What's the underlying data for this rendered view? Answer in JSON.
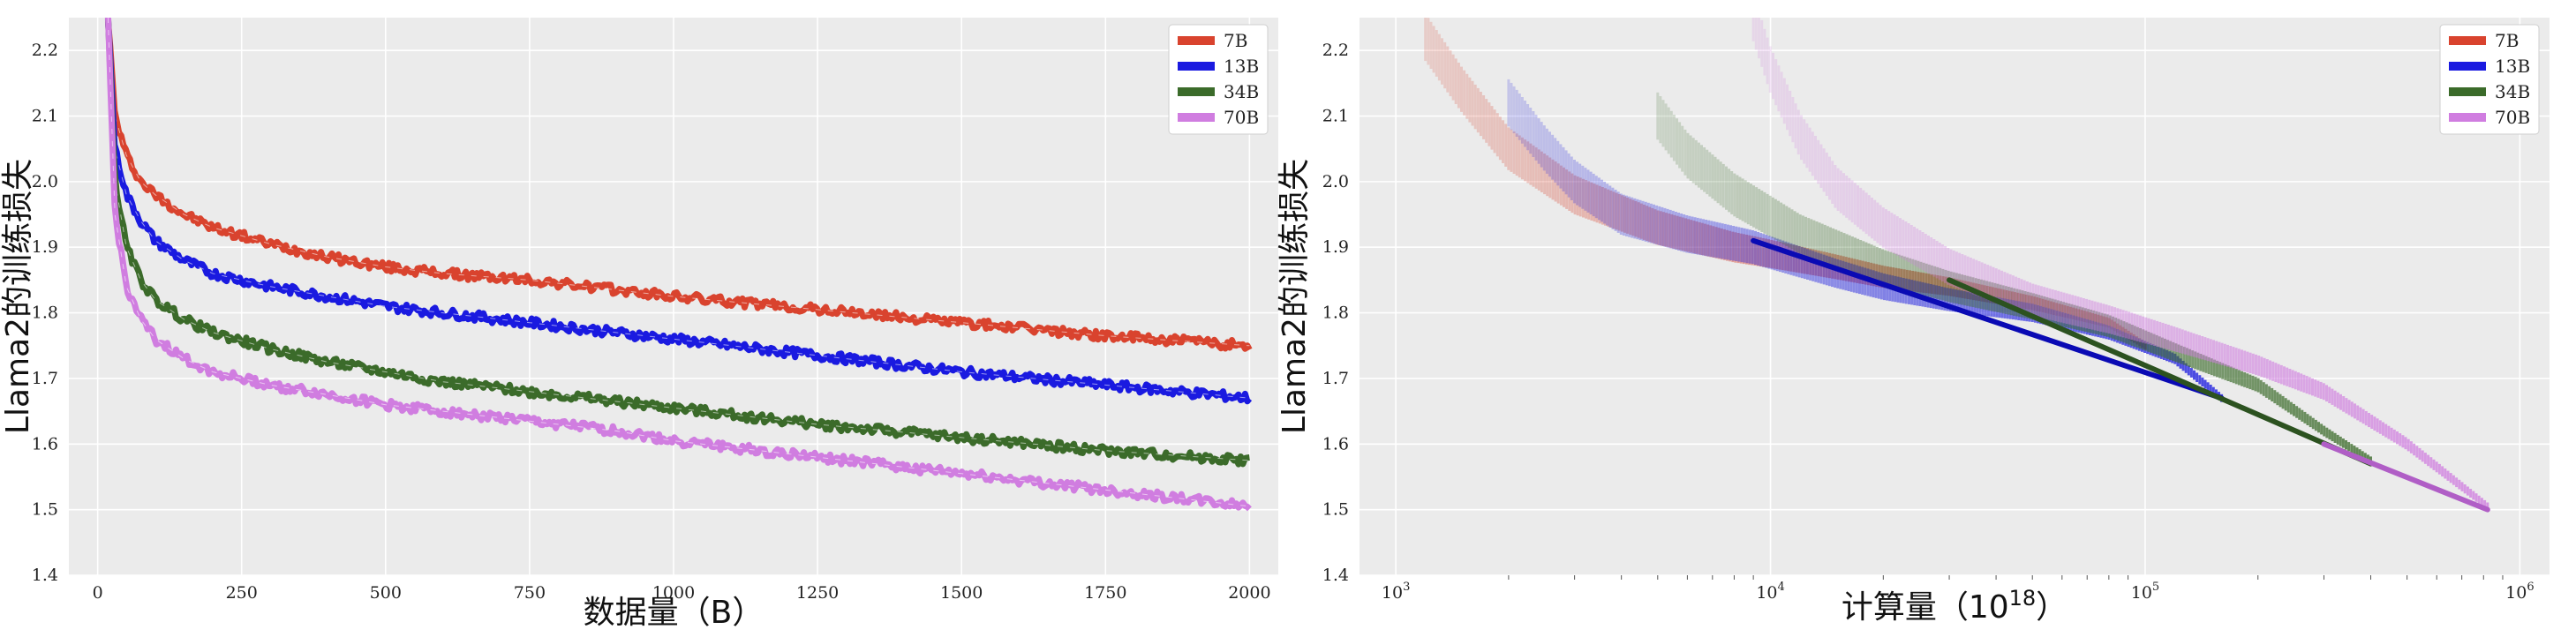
{
  "chart_data": [
    {
      "type": "line",
      "xlabel": "数据量（B）",
      "ylabel": "Llama2的训练损失",
      "xlim": [
        -50,
        2050
      ],
      "ylim": [
        1.4,
        2.25
      ],
      "x_scale": "linear",
      "x_ticks": [
        0,
        250,
        500,
        750,
        1000,
        1250,
        1500,
        1750,
        2000
      ],
      "y_ticks": [
        1.4,
        1.5,
        1.6,
        1.7,
        1.8,
        1.9,
        2.0,
        2.1,
        2.2
      ],
      "grid": true,
      "legend_position": "top-right",
      "series": [
        {
          "name": "7B",
          "color": "#d9432e",
          "x": [
            18,
            30,
            50,
            75,
            100,
            150,
            200,
            300,
            400,
            500,
            600,
            750,
            900,
            1000,
            1250,
            1500,
            1750,
            2000
          ],
          "y": [
            2.25,
            2.1,
            2.04,
            2.0,
            1.98,
            1.95,
            1.93,
            1.905,
            1.885,
            1.87,
            1.86,
            1.85,
            1.835,
            1.825,
            1.805,
            1.785,
            1.765,
            1.75
          ]
        },
        {
          "name": "13B",
          "color": "#1a1ae0",
          "x": [
            18,
            30,
            50,
            75,
            100,
            150,
            200,
            300,
            400,
            500,
            600,
            750,
            900,
            1000,
            1250,
            1500,
            1750,
            2000
          ],
          "y": [
            2.25,
            2.05,
            1.98,
            1.94,
            1.91,
            1.88,
            1.86,
            1.84,
            1.825,
            1.81,
            1.8,
            1.785,
            1.77,
            1.76,
            1.735,
            1.71,
            1.69,
            1.67
          ]
        },
        {
          "name": "34B",
          "color": "#3b6b2a",
          "x": [
            18,
            30,
            50,
            75,
            100,
            150,
            200,
            300,
            400,
            500,
            600,
            750,
            900,
            1000,
            1250,
            1500,
            1750,
            2000
          ],
          "y": [
            2.25,
            2.0,
            1.9,
            1.85,
            1.82,
            1.79,
            1.77,
            1.745,
            1.725,
            1.71,
            1.695,
            1.68,
            1.665,
            1.655,
            1.63,
            1.61,
            1.59,
            1.575
          ]
        },
        {
          "name": "70B",
          "color": "#d07de0",
          "x": [
            18,
            30,
            50,
            75,
            100,
            150,
            200,
            300,
            400,
            500,
            600,
            750,
            900,
            1000,
            1250,
            1500,
            1750,
            2000
          ],
          "y": [
            2.25,
            1.95,
            1.84,
            1.79,
            1.76,
            1.73,
            1.71,
            1.69,
            1.675,
            1.66,
            1.65,
            1.635,
            1.62,
            1.605,
            1.58,
            1.555,
            1.53,
            1.505
          ]
        }
      ]
    },
    {
      "type": "line",
      "xlabel": "计算量（10",
      "xlabel_sup": "18",
      "xlabel_suffix": "）",
      "ylabel": "Llama2的训练损失",
      "xlim": [
        800,
        1200000
      ],
      "ylim": [
        1.4,
        2.25
      ],
      "x_scale": "log",
      "x_ticks": [
        1000,
        10000,
        100000,
        1000000
      ],
      "x_tick_labels": [
        {
          "base": "10",
          "exp": "3"
        },
        {
          "base": "10",
          "exp": "4"
        },
        {
          "base": "10",
          "exp": "5"
        },
        {
          "base": "10",
          "exp": "6"
        }
      ],
      "y_ticks": [
        1.4,
        1.5,
        1.6,
        1.7,
        1.8,
        1.9,
        2.0,
        2.1,
        2.2
      ],
      "grid": true,
      "legend_position": "top-right",
      "series": [
        {
          "name": "7B",
          "color": "#d9432e",
          "x": [
            1200,
            1500,
            2000,
            3000,
            5000,
            8000,
            10000,
            15000,
            20000,
            30000,
            50000,
            80000,
            100000
          ],
          "y": [
            2.22,
            2.14,
            2.05,
            1.98,
            1.93,
            1.9,
            1.89,
            1.87,
            1.855,
            1.84,
            1.815,
            1.785,
            1.75
          ]
        },
        {
          "name": "13B",
          "color": "#1a1ae0",
          "x": [
            2000,
            2500,
            3000,
            4000,
            6000,
            9000,
            15000,
            20000,
            30000,
            50000,
            80000,
            120000,
            160000
          ],
          "y": [
            2.12,
            2.05,
            2.0,
            1.95,
            1.92,
            1.9,
            1.86,
            1.84,
            1.82,
            1.8,
            1.77,
            1.73,
            1.67
          ]
        },
        {
          "name": "34B",
          "color": "#3b6b2a",
          "x": [
            5000,
            6000,
            8000,
            12000,
            20000,
            30000,
            50000,
            80000,
            120000,
            200000,
            300000,
            400000
          ],
          "y": [
            2.1,
            2.04,
            1.98,
            1.92,
            1.87,
            1.84,
            1.81,
            1.78,
            1.74,
            1.69,
            1.62,
            1.575
          ]
        },
        {
          "name": "70B",
          "color": "#d07de0",
          "x": [
            9000,
            10000,
            12000,
            15000,
            20000,
            30000,
            50000,
            80000,
            120000,
            200000,
            300000,
            500000,
            820000
          ],
          "y": [
            2.25,
            2.17,
            2.07,
            1.99,
            1.93,
            1.87,
            1.82,
            1.79,
            1.76,
            1.72,
            1.68,
            1.6,
            1.505
          ]
        }
      ],
      "trend_lines": [
        {
          "color": "#0a0ab4",
          "x": [
            9000,
            160000
          ],
          "y": [
            1.91,
            1.67
          ]
        },
        {
          "color": "#2c5220",
          "x": [
            30000,
            400000
          ],
          "y": [
            1.85,
            1.57
          ]
        },
        {
          "color": "#b05ec6",
          "x": [
            300000,
            820000
          ],
          "y": [
            1.6,
            1.5
          ]
        }
      ]
    }
  ]
}
